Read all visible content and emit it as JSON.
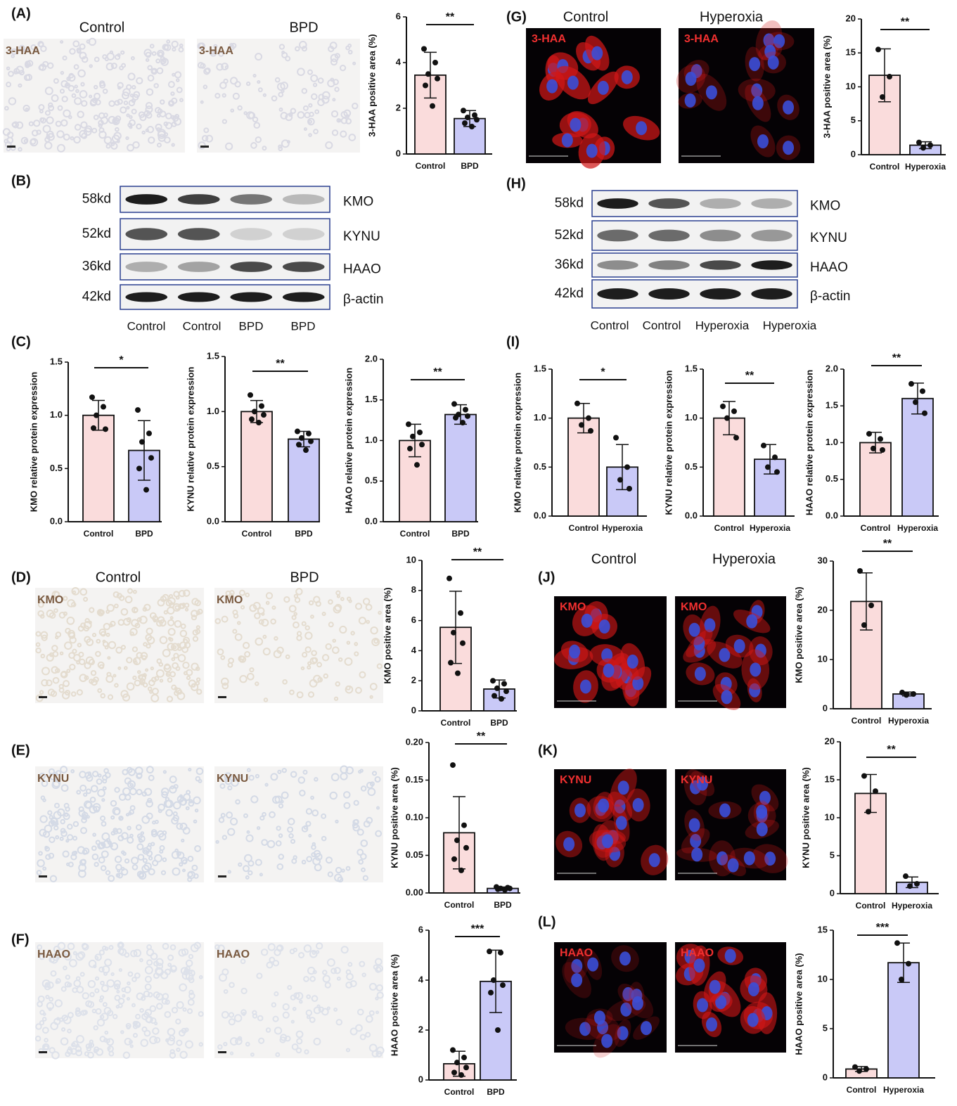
{
  "panel_labels": [
    "(A)",
    "(B)",
    "(C)",
    "(D)",
    "(E)",
    "(F)",
    "(G)",
    "(H)",
    "(I)",
    "(J)",
    "(K)",
    "(L)"
  ],
  "image_groups": [
    {
      "headers": [
        "Control",
        "BPD"
      ],
      "stains": [
        "3-HAA",
        "3-HAA"
      ]
    },
    {
      "headers": [
        "Control",
        "BPD"
      ],
      "stains": [
        "KMO",
        "KMO"
      ]
    },
    {
      "stains": [
        "KYNU",
        "KYNU"
      ]
    },
    {
      "stains": [
        "HAAO",
        "HAAO"
      ]
    },
    {
      "headers": [
        "Control",
        "Hyperoxia"
      ],
      "stains": [
        "3-HAA",
        "3-HAA"
      ]
    },
    {
      "headers": [
        "Control",
        "Hyperoxia"
      ],
      "stains": [
        "KMO",
        "KMO"
      ]
    },
    {
      "stains": [
        "KYNU",
        "KYNU"
      ]
    },
    {
      "stains": [
        "HAAO",
        "HAAO"
      ]
    }
  ],
  "blots": [
    {
      "sizes": [
        "58kd",
        "52kd",
        "36kd",
        "42kd"
      ],
      "proteins": [
        "KMO",
        "KYNU",
        "HAAO",
        "β-actin"
      ],
      "lanes": [
        "Control",
        "Control",
        "BPD",
        "BPD"
      ]
    },
    {
      "sizes": [
        "58kd",
        "52kd",
        "36kd",
        "42kd"
      ],
      "proteins": [
        "KMO",
        "KYNU",
        "HAAO",
        "β-actin"
      ],
      "lanes": [
        "Control",
        "Control",
        "Hyperoxia",
        "Hyperoxia"
      ]
    }
  ],
  "chart_data": [
    {
      "type": "bar",
      "ylabel": "3-HAA positive area (%)",
      "categories": [
        "Control",
        "BPD"
      ],
      "values": [
        3.45,
        1.55
      ],
      "errors": [
        1.0,
        0.35
      ],
      "points": [
        [
          4.6,
          4.0,
          3.5,
          3.3,
          3.0,
          2.1
        ],
        [
          1.9,
          1.7,
          1.6,
          1.5,
          1.35,
          1.2
        ]
      ],
      "colors": [
        "#fadcdc",
        "#c9c9f7"
      ],
      "significance": "**",
      "ylim": [
        0,
        6
      ],
      "yticks": [
        0,
        2,
        4,
        6
      ]
    },
    {
      "type": "bar",
      "ylabel": "KMO relative protein expression",
      "categories": [
        "Control",
        "BPD"
      ],
      "values": [
        1.0,
        0.67
      ],
      "errors": [
        0.14,
        0.28
      ],
      "points": [
        [
          1.17,
          1.08,
          1.0,
          0.87,
          0.88
        ],
        [
          1.05,
          0.83,
          0.75,
          0.6,
          0.5,
          0.3
        ]
      ],
      "colors": [
        "#fadcdc",
        "#c9c9f7"
      ],
      "significance": "*",
      "ylim": [
        0,
        1.5
      ],
      "yticks": [
        {
          "value": 0,
          "label": "0.0"
        },
        0.5,
        {
          "value": 1,
          "label": "1.0"
        },
        1.5
      ]
    },
    {
      "type": "bar",
      "ylabel": "KYNU relative protein expression",
      "categories": [
        "Control",
        "BPD"
      ],
      "values": [
        1.0,
        0.75
      ],
      "errors": [
        0.1,
        0.07
      ],
      "points": [
        [
          1.15,
          1.05,
          1.0,
          0.97,
          0.93,
          0.9
        ],
        [
          0.82,
          0.8,
          0.76,
          0.73,
          0.7,
          0.65
        ]
      ],
      "colors": [
        "#fadcdc",
        "#c9c9f7"
      ],
      "significance": "**",
      "ylim": [
        0,
        1.5
      ],
      "yticks": [
        {
          "value": 0,
          "label": "0.0"
        },
        0.5,
        {
          "value": 1,
          "label": "1.0"
        },
        1.5
      ]
    },
    {
      "type": "bar",
      "ylabel": "HAAO relative protein expression",
      "categories": [
        "Control",
        "BPD"
      ],
      "values": [
        1.0,
        1.32
      ],
      "errors": [
        0.2,
        0.12
      ],
      "points": [
        [
          1.2,
          1.1,
          1.05,
          0.95,
          0.9,
          0.7
        ],
        [
          1.45,
          1.38,
          1.32,
          1.3,
          1.28,
          1.22
        ]
      ],
      "colors": [
        "#fadcdc",
        "#c9c9f7"
      ],
      "significance": "**",
      "ylim": [
        0,
        2
      ],
      "yticks": [
        {
          "value": 0,
          "label": "0.0"
        },
        0.5,
        {
          "value": 1,
          "label": "1.0"
        },
        1.5,
        {
          "value": 2,
          "label": "2.0"
        }
      ]
    },
    {
      "type": "bar",
      "ylabel": "KMO positive area (%)",
      "categories": [
        "Control",
        "BPD"
      ],
      "values": [
        5.55,
        1.45
      ],
      "errors": [
        2.4,
        0.6
      ],
      "points": [
        [
          8.8,
          6.5,
          5.2,
          4.5,
          3.2,
          2.5
        ],
        [
          2.0,
          1.8,
          1.5,
          1.3,
          1.0,
          0.8
        ]
      ],
      "colors": [
        "#fadcdc",
        "#c9c9f7"
      ],
      "significance": "**",
      "ylim": [
        0,
        10
      ],
      "yticks": [
        0,
        2,
        4,
        6,
        8,
        10
      ]
    },
    {
      "type": "bar",
      "ylabel": "KYNU positive area (%)",
      "categories": [
        "Control",
        "BPD"
      ],
      "values": [
        0.08,
        0.006
      ],
      "errors": [
        0.048,
        0.002
      ],
      "points": [
        [
          0.17,
          0.09,
          0.07,
          0.06,
          0.045,
          0.03
        ],
        [
          0.008,
          0.007,
          0.006,
          0.006,
          0.005,
          0.004
        ]
      ],
      "colors": [
        "#fadcdc",
        "#c9c9f7"
      ],
      "significance": "**",
      "ylim": [
        0,
        0.2
      ],
      "yticks": [
        {
          "value": 0,
          "label": "0.00"
        },
        0.05,
        {
          "value": 0.1,
          "label": "0.10"
        },
        0.15,
        {
          "value": 0.2,
          "label": "0.20"
        }
      ]
    },
    {
      "type": "bar",
      "ylabel": "HAAO positive area (%)",
      "categories": [
        "Control",
        "BPD"
      ],
      "values": [
        0.65,
        3.95
      ],
      "errors": [
        0.5,
        1.25
      ],
      "points": [
        [
          1.2,
          0.9,
          0.7,
          0.5,
          0.3,
          0.2
        ],
        [
          5.15,
          5.1,
          4.0,
          3.8,
          3.5,
          2.0
        ]
      ],
      "colors": [
        "#fadcdc",
        "#c9c9f7"
      ],
      "significance": "***",
      "ylim": [
        0,
        6
      ],
      "yticks": [
        0,
        2,
        4,
        6
      ]
    },
    {
      "type": "bar",
      "ylabel": "3-HAA positive area (%)",
      "categories": [
        "Control",
        "Hyperoxia"
      ],
      "values": [
        11.7,
        1.4
      ],
      "errors": [
        3.9,
        0.5
      ],
      "points": [
        [
          15.5,
          11.5,
          8.5
        ],
        [
          1.8,
          1.4,
          1.0
        ]
      ],
      "colors": [
        "#fadcdc",
        "#c9c9f7"
      ],
      "significance": "**",
      "ylim": [
        0,
        20
      ],
      "yticks": [
        0,
        5,
        10,
        15,
        20
      ]
    },
    {
      "type": "bar",
      "ylabel": "KMO relative protein expression",
      "categories": [
        "Control",
        "Hyperoxia"
      ],
      "values": [
        1.0,
        0.5
      ],
      "errors": [
        0.15,
        0.23
      ],
      "points": [
        [
          1.15,
          1.0,
          0.93,
          0.87
        ],
        [
          0.8,
          0.5,
          0.37,
          0.28
        ]
      ],
      "colors": [
        "#fadcdc",
        "#c9c9f7"
      ],
      "significance": "*",
      "ylim": [
        0,
        1.5
      ],
      "yticks": [
        {
          "value": 0,
          "label": "0.0"
        },
        0.5,
        {
          "value": 1,
          "label": "1.0"
        },
        1.5
      ]
    },
    {
      "type": "bar",
      "ylabel": "KYNU relative protein expression",
      "categories": [
        "Control",
        "Hyperoxia"
      ],
      "values": [
        1.0,
        0.58
      ],
      "errors": [
        0.17,
        0.15
      ],
      "points": [
        [
          1.12,
          1.07,
          1.0,
          0.8
        ],
        [
          0.72,
          0.6,
          0.5,
          0.45
        ]
      ],
      "colors": [
        "#fadcdc",
        "#c9c9f7"
      ],
      "significance": "**",
      "ylim": [
        0,
        1.5
      ],
      "yticks": [
        {
          "value": 0,
          "label": "0.0"
        },
        0.5,
        {
          "value": 1,
          "label": "1.0"
        },
        1.5
      ]
    },
    {
      "type": "bar",
      "ylabel": "HAAO relative protein expression",
      "categories": [
        "Control",
        "Hyperoxia"
      ],
      "values": [
        1.0,
        1.6
      ],
      "errors": [
        0.14,
        0.21
      ],
      "points": [
        [
          1.12,
          1.05,
          0.92,
          0.9
        ],
        [
          1.8,
          1.7,
          1.55,
          1.4
        ]
      ],
      "colors": [
        "#fadcdc",
        "#c9c9f7"
      ],
      "significance": "**",
      "ylim": [
        0,
        2
      ],
      "yticks": [
        {
          "value": 0,
          "label": "0.0"
        },
        0.5,
        {
          "value": 1,
          "label": "1.0"
        },
        1.5,
        {
          "value": 2,
          "label": "2.0"
        }
      ]
    },
    {
      "type": "bar",
      "ylabel": "KMO positive area (%)",
      "categories": [
        "Control",
        "Hyperoxia"
      ],
      "values": [
        21.8,
        3.0
      ],
      "errors": [
        5.8,
        0.4
      ],
      "points": [
        [
          28,
          21,
          17
        ],
        [
          3.3,
          3.0,
          2.8
        ]
      ],
      "colors": [
        "#fadcdc",
        "#c9c9f7"
      ],
      "significance": "**",
      "ylim": [
        0,
        30
      ],
      "yticks": [
        0,
        10,
        20,
        30
      ]
    },
    {
      "type": "bar",
      "ylabel": "KYNU positive area (%)",
      "categories": [
        "Control",
        "Hyperoxia"
      ],
      "values": [
        13.2,
        1.5
      ],
      "errors": [
        2.5,
        0.7
      ],
      "points": [
        [
          15.5,
          13.5,
          10.8
        ],
        [
          2.3,
          1.3,
          1.0
        ]
      ],
      "colors": [
        "#fadcdc",
        "#c9c9f7"
      ],
      "significance": "**",
      "ylim": [
        0,
        20
      ],
      "yticks": [
        0,
        5,
        10,
        15,
        20
      ]
    },
    {
      "type": "bar",
      "ylabel": "HAAO positive area (%)",
      "categories": [
        "Control",
        "Hyperoxia"
      ],
      "values": [
        0.9,
        11.7
      ],
      "errors": [
        0.25,
        2.0
      ],
      "points": [
        [
          1.1,
          0.9,
          0.7
        ],
        [
          13.7,
          11.6,
          10.0
        ]
      ],
      "colors": [
        "#fadcdc",
        "#c9c9f7"
      ],
      "significance": "***",
      "ylim": [
        0,
        15
      ],
      "yticks": [
        0,
        5,
        10,
        15
      ]
    }
  ]
}
